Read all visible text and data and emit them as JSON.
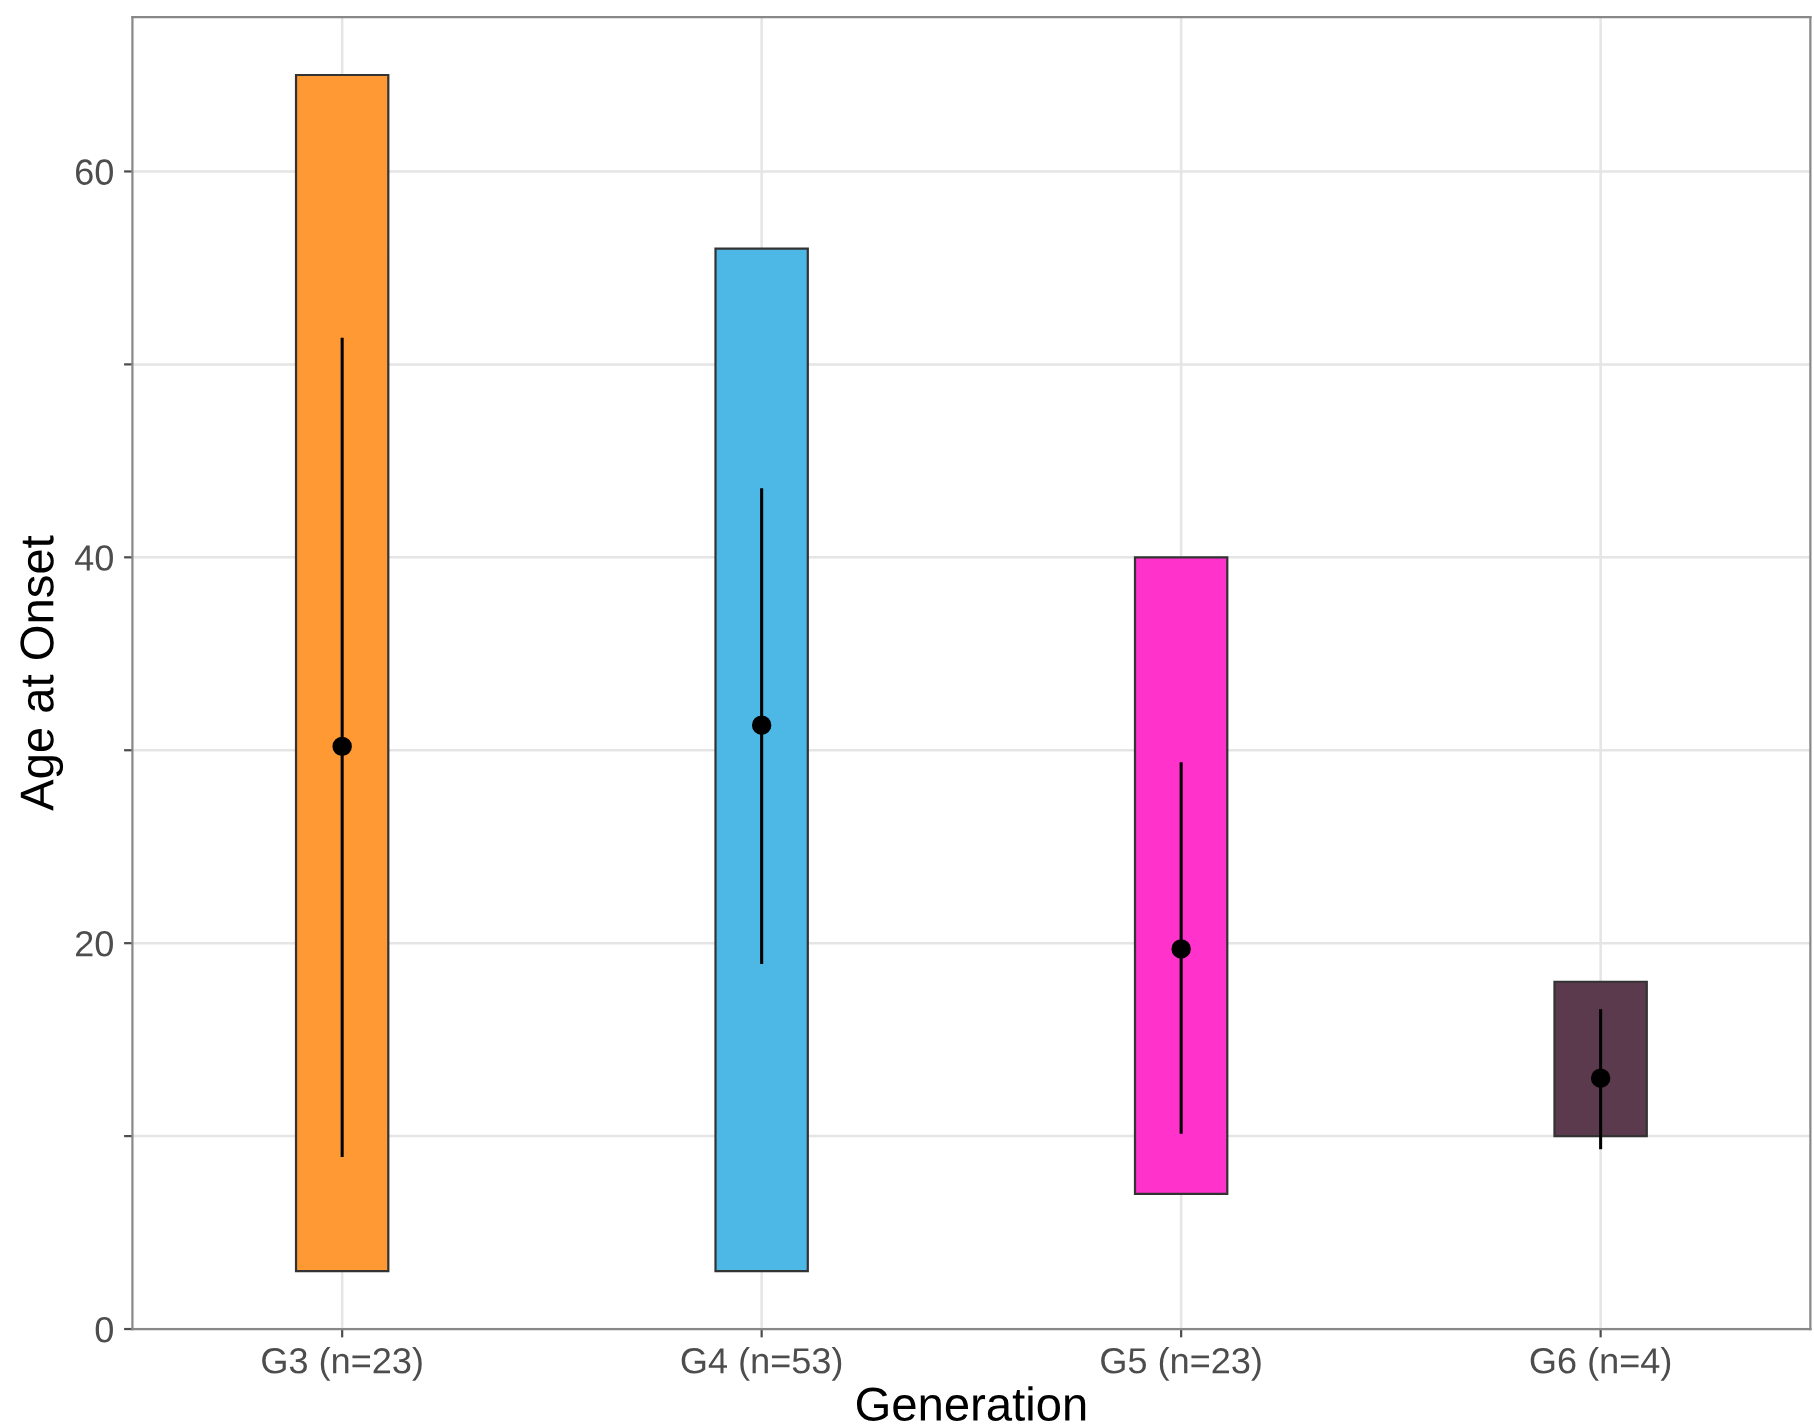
{
  "chart_data": {
    "type": "bar",
    "xlabel": "Generation",
    "ylabel": "Age at Onset",
    "categories": [
      "G3 (n=23)",
      "G4 (n=53)",
      "G5 (n=23)",
      "G6 (n=4)"
    ],
    "series": [
      {
        "base": [
          3,
          3,
          7,
          10
        ],
        "values": [
          62,
          53,
          33,
          8
        ],
        "colors": [
          "#ff9933",
          "#4db8e6",
          "#ff33cc",
          "#5c3a4d"
        ]
      },
      {
        "type": "scatter",
        "color": "#000000",
        "values": [
          30.2,
          31.3,
          19.7,
          13.0
        ],
        "errors": [
          [
            9.0,
            51.3
          ],
          [
            19.0,
            43.5
          ],
          [
            10.2,
            29.3
          ],
          [
            9.4,
            16.5
          ]
        ]
      }
    ],
    "ylim": [
      0,
      68
    ],
    "yticks": [
      0,
      {
        "value": 10,
        "label": null
      },
      20,
      {
        "value": 30,
        "label": null
      },
      40,
      {
        "value": 50,
        "label": null
      },
      60
    ],
    "grid": true,
    "marker": "circle"
  }
}
